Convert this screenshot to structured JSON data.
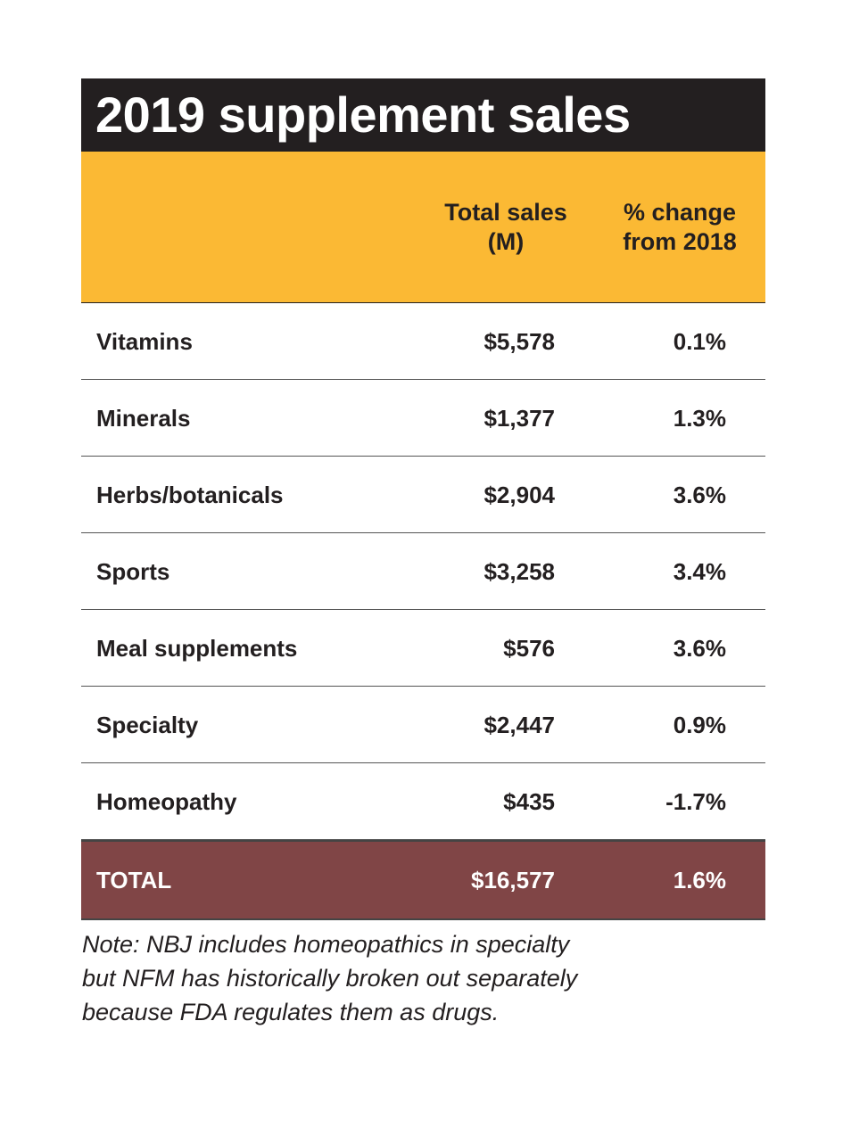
{
  "title": "2019 supplement sales",
  "chart_data": {
    "type": "table",
    "title": "2019 supplement sales",
    "columns": [
      "",
      "Total sales (M)",
      "% change from 2018"
    ],
    "column_lines": [
      [
        "Total sales",
        "(M)"
      ],
      [
        "% change",
        "from 2018"
      ]
    ],
    "rows": [
      {
        "category": "Vitamins",
        "sales": "$5,578",
        "change": "0.1%"
      },
      {
        "category": "Minerals",
        "sales": "$1,377",
        "change": "1.3%"
      },
      {
        "category": "Herbs/botanicals",
        "sales": "$2,904",
        "change": "3.6%"
      },
      {
        "category": "Sports",
        "sales": "$3,258",
        "change": "3.4%"
      },
      {
        "category": "Meal supplements",
        "sales": "$576",
        "change": "3.6%"
      },
      {
        "category": "Specialty",
        "sales": "$2,447",
        "change": "0.9%"
      },
      {
        "category": "Homeopathy",
        "sales": "$435",
        "change": "-1.7%"
      }
    ],
    "total": {
      "category": "TOTAL",
      "sales": "$16,577",
      "change": "1.6%"
    }
  },
  "note": [
    "Note: NBJ includes homeopathics in specialty",
    "but NFM has historically broken out separately",
    "because FDA regulates them as drugs."
  ],
  "colors": {
    "title_bg": "#231f20",
    "header_bg": "#fbb934",
    "total_bg": "#804546"
  }
}
